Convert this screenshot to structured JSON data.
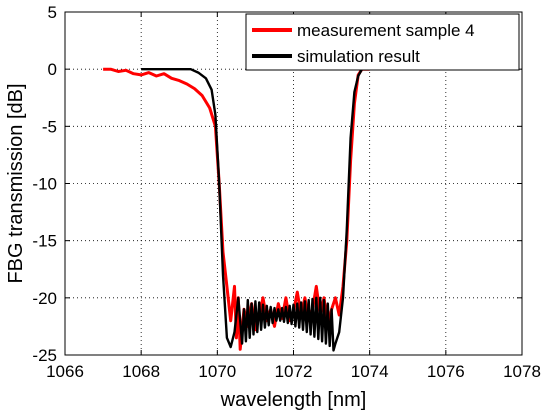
{
  "chart_data": {
    "type": "line",
    "title": "",
    "xlabel": "wavelength [nm]",
    "ylabel": "FBG transmission [dB]",
    "xlim": [
      1066,
      1078
    ],
    "ylim": [
      -25,
      5
    ],
    "xticks": [
      1066,
      1068,
      1070,
      1072,
      1074,
      1076,
      1078
    ],
    "yticks": [
      5,
      0,
      -5,
      -10,
      -15,
      -20,
      -25
    ],
    "xtick_labels": [
      "1066",
      "1068",
      "1070",
      "1072",
      "1074",
      "1076",
      "1078"
    ],
    "ytick_labels": [
      "5",
      "0",
      "-5",
      "-10",
      "-15",
      "-20",
      "-25"
    ],
    "grid": true,
    "legend_position": "top-right",
    "series": [
      {
        "name": "measurement sample 4",
        "color": "#ff0000",
        "x": [
          1067.0,
          1067.2,
          1067.4,
          1067.6,
          1067.8,
          1068.0,
          1068.2,
          1068.4,
          1068.6,
          1068.8,
          1069.0,
          1069.2,
          1069.4,
          1069.6,
          1069.8,
          1069.95,
          1070.05,
          1070.15,
          1070.25,
          1070.35,
          1070.45,
          1070.5,
          1070.55,
          1070.6,
          1070.7,
          1070.8,
          1070.9,
          1071.0,
          1071.1,
          1071.2,
          1071.3,
          1071.4,
          1071.5,
          1071.6,
          1071.7,
          1071.8,
          1071.9,
          1072.0,
          1072.1,
          1072.2,
          1072.3,
          1072.4,
          1072.5,
          1072.6,
          1072.7,
          1072.8,
          1072.9,
          1073.0,
          1073.1,
          1073.2,
          1073.3,
          1073.4,
          1073.5,
          1073.6,
          1073.7,
          1073.8,
          1073.9,
          1074.0
        ],
        "y": [
          0.0,
          0.0,
          -0.2,
          -0.1,
          -0.4,
          -0.5,
          -0.3,
          -0.6,
          -0.4,
          -0.8,
          -1.0,
          -1.3,
          -1.7,
          -2.3,
          -3.4,
          -5.0,
          -10.0,
          -16.0,
          -19.0,
          -22.0,
          -19.0,
          -23.5,
          -20.0,
          -24.5,
          -21.0,
          -22.5,
          -20.5,
          -22.8,
          -21.5,
          -20.0,
          -22.0,
          -21.0,
          -22.5,
          -20.5,
          -21.8,
          -20.0,
          -22.0,
          -21.2,
          -19.5,
          -21.5,
          -20.0,
          -22.0,
          -21.0,
          -19.0,
          -21.5,
          -20.0,
          -22.5,
          -21.0,
          -20.0,
          -21.5,
          -19.0,
          -15.0,
          -8.0,
          -3.0,
          -0.5,
          0.0,
          0.0,
          0.0
        ]
      },
      {
        "name": "simulation result",
        "color": "#000000",
        "x": [
          1068.0,
          1068.5,
          1069.0,
          1069.3,
          1069.5,
          1069.7,
          1069.85,
          1069.95,
          1070.05,
          1070.15,
          1070.25,
          1070.35,
          1070.45,
          1070.55,
          1070.65,
          1070.7,
          1070.75,
          1070.8,
          1070.85,
          1070.9,
          1070.95,
          1071.0,
          1071.05,
          1071.1,
          1071.15,
          1071.2,
          1071.25,
          1071.3,
          1071.35,
          1071.4,
          1071.45,
          1071.5,
          1071.55,
          1071.6,
          1071.65,
          1071.7,
          1071.75,
          1071.8,
          1071.85,
          1071.9,
          1071.95,
          1072.0,
          1072.05,
          1072.1,
          1072.15,
          1072.2,
          1072.25,
          1072.3,
          1072.35,
          1072.4,
          1072.45,
          1072.5,
          1072.55,
          1072.6,
          1072.65,
          1072.7,
          1072.75,
          1072.8,
          1072.85,
          1072.9,
          1072.95,
          1073.0,
          1073.05,
          1073.1,
          1073.2,
          1073.3,
          1073.4,
          1073.5,
          1073.6,
          1073.7,
          1073.8,
          1074.0,
          1074.5,
          1075.0
        ],
        "y": [
          0.0,
          0.0,
          0.0,
          0.0,
          -0.3,
          -0.8,
          -1.8,
          -4.0,
          -10.0,
          -18.0,
          -23.5,
          -24.3,
          -23.0,
          -20.0,
          -24.0,
          -21.0,
          -23.8,
          -20.2,
          -23.5,
          -20.5,
          -23.2,
          -20.3,
          -23.0,
          -20.4,
          -22.8,
          -20.6,
          -22.6,
          -20.7,
          -22.4,
          -20.8,
          -22.2,
          -20.9,
          -22.0,
          -21.0,
          -22.0,
          -20.9,
          -22.1,
          -20.8,
          -22.2,
          -20.7,
          -22.3,
          -20.6,
          -22.5,
          -20.5,
          -22.6,
          -20.4,
          -22.8,
          -20.3,
          -23.0,
          -20.2,
          -23.2,
          -20.1,
          -23.4,
          -20.0,
          -23.6,
          -20.0,
          -23.8,
          -20.2,
          -24.0,
          -20.5,
          -24.2,
          -21.0,
          -24.6,
          -24.0,
          -23.0,
          -20.0,
          -14.0,
          -6.0,
          -2.0,
          -0.6,
          0.0,
          0.0,
          0.0,
          0.0
        ]
      }
    ]
  }
}
